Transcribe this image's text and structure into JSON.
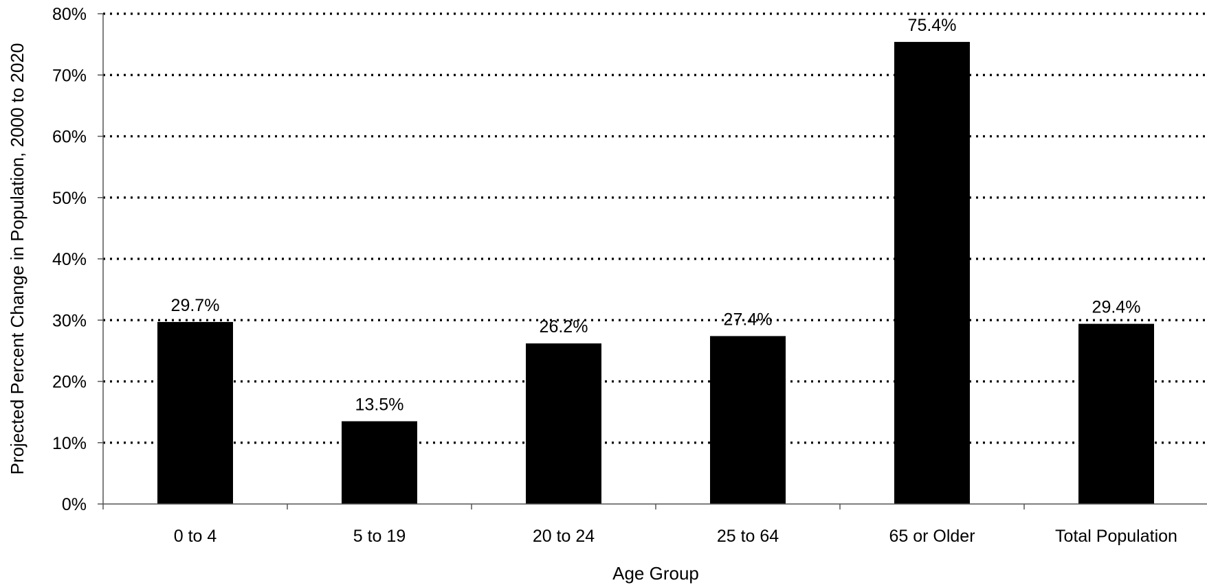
{
  "chart_data": {
    "type": "bar",
    "title": "",
    "xlabel": "Age Group",
    "ylabel": "Projected Percent Change in Population, 2000 to 2020",
    "categories": [
      "0 to 4",
      "5 to 19",
      "20 to 24",
      "25 to 64",
      "65 or Older",
      "Total Population"
    ],
    "values": [
      29.7,
      13.5,
      26.2,
      27.4,
      75.4,
      29.4
    ],
    "value_labels": [
      "29.7%",
      "13.5%",
      "26.2%",
      "27.4%",
      "75.4%",
      "29.4%"
    ],
    "ylim": [
      0,
      80
    ],
    "yticks": [
      0,
      10,
      20,
      30,
      40,
      50,
      60,
      70,
      80
    ],
    "ytick_labels": [
      "0%",
      "10%",
      "20%",
      "30%",
      "40%",
      "50%",
      "60%",
      "70%",
      "80%"
    ],
    "grid": true,
    "grid_style": "dotted",
    "legend": "none",
    "colors": {
      "bar": "#000000",
      "grid": "#000000",
      "axis": "#555555",
      "text": "#000000"
    }
  }
}
